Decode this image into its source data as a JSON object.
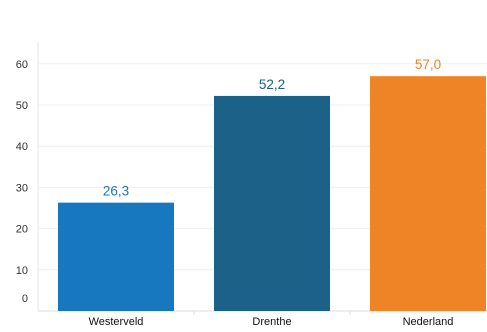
{
  "chart_data": {
    "type": "bar",
    "categories": [
      "Westerveld",
      "Drenthe",
      "Nederland"
    ],
    "values": [
      26.3,
      52.2,
      57.0
    ],
    "value_labels": [
      "26,3",
      "52,2",
      "57,0"
    ],
    "colors": [
      "#1778c0",
      "#1b6188",
      "#ef8426"
    ],
    "ylim": [
      0,
      60
    ],
    "y_ticks": [
      "0",
      "10",
      "20",
      "30",
      "40",
      "50",
      "60"
    ],
    "grid": true,
    "legend": "none"
  }
}
